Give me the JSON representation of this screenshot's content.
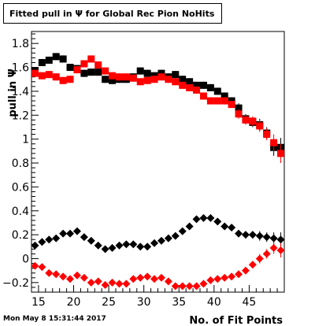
{
  "title": "Fitted pull in Ψ  for Global Rec Pion NoHits",
  "datestamp": "Mon May  8 15:31:44 2017",
  "chart_data": {
    "type": "scatter",
    "title": "Fitted pull in Ψ  for Global Rec Pion NoHits",
    "xlabel": "No. of Fit Points",
    "ylabel": "pull in Ψ",
    "xlim": [
      14,
      50
    ],
    "ylim": [
      -0.28,
      1.9
    ],
    "x_ticks": [
      15,
      20,
      25,
      30,
      35,
      40,
      45
    ],
    "y_ticks": [
      -0.2,
      0,
      0.2,
      0.4,
      0.6,
      0.8,
      1,
      1.2,
      1.4,
      1.6,
      1.8
    ],
    "x_tick_labels": [
      "15",
      "20",
      "25",
      "30",
      "35",
      "40",
      "45"
    ],
    "y_tick_labels": [
      "−0.2",
      "0",
      "0.2",
      "0.4",
      "0.6",
      "0.8",
      "1",
      "1.2",
      "1.4",
      "1.6",
      "1.8"
    ],
    "grid": false,
    "x": [
      14.5,
      15.5,
      16.5,
      17.5,
      18.5,
      19.5,
      20.5,
      21.5,
      22.5,
      23.5,
      24.5,
      25.5,
      26.5,
      27.5,
      28.5,
      29.5,
      30.5,
      31.5,
      32.5,
      33.5,
      34.5,
      35.5,
      36.5,
      37.5,
      38.5,
      39.5,
      40.5,
      41.5,
      42.5,
      43.5,
      44.5,
      45.5,
      46.5,
      47.5,
      48.5,
      49.5
    ],
    "series": [
      {
        "marker": "square",
        "color": "#000000",
        "values": [
          1.57,
          1.64,
          1.66,
          1.69,
          1.67,
          1.6,
          1.59,
          1.55,
          1.56,
          1.56,
          1.5,
          1.49,
          1.5,
          1.5,
          1.52,
          1.57,
          1.55,
          1.53,
          1.55,
          1.52,
          1.54,
          1.5,
          1.48,
          1.45,
          1.45,
          1.43,
          1.4,
          1.36,
          1.32,
          1.26,
          1.17,
          1.14,
          1.12,
          1.05,
          0.93,
          0.93
        ],
        "errors": [
          0.03,
          0.03,
          0.03,
          0.03,
          0.03,
          0.03,
          0.03,
          0.03,
          0.03,
          0.03,
          0.03,
          0.03,
          0.03,
          0.03,
          0.03,
          0.03,
          0.03,
          0.03,
          0.03,
          0.03,
          0.03,
          0.03,
          0.03,
          0.03,
          0.03,
          0.03,
          0.03,
          0.03,
          0.03,
          0.04,
          0.04,
          0.04,
          0.05,
          0.05,
          0.07,
          0.08
        ]
      },
      {
        "marker": "square",
        "color": "#ff0000",
        "values": [
          1.55,
          1.53,
          1.54,
          1.52,
          1.49,
          1.5,
          1.58,
          1.63,
          1.67,
          1.62,
          1.57,
          1.53,
          1.52,
          1.52,
          1.51,
          1.48,
          1.49,
          1.5,
          1.52,
          1.5,
          1.48,
          1.45,
          1.43,
          1.41,
          1.36,
          1.32,
          1.32,
          1.32,
          1.29,
          1.21,
          1.16,
          1.15,
          1.11,
          1.04,
          0.97,
          0.88
        ],
        "errors": [
          0.03,
          0.03,
          0.03,
          0.03,
          0.03,
          0.03,
          0.03,
          0.03,
          0.03,
          0.03,
          0.03,
          0.03,
          0.03,
          0.03,
          0.03,
          0.03,
          0.03,
          0.03,
          0.03,
          0.03,
          0.03,
          0.03,
          0.03,
          0.03,
          0.03,
          0.03,
          0.03,
          0.03,
          0.03,
          0.04,
          0.04,
          0.04,
          0.05,
          0.05,
          0.07,
          0.08
        ]
      },
      {
        "marker": "diamond",
        "color": "#000000",
        "values": [
          0.11,
          0.14,
          0.16,
          0.17,
          0.21,
          0.21,
          0.23,
          0.18,
          0.15,
          0.11,
          0.08,
          0.09,
          0.11,
          0.12,
          0.12,
          0.1,
          0.1,
          0.13,
          0.15,
          0.17,
          0.19,
          0.23,
          0.27,
          0.33,
          0.34,
          0.34,
          0.31,
          0.27,
          0.26,
          0.21,
          0.2,
          0.2,
          0.19,
          0.18,
          0.17,
          0.16
        ],
        "errors": [
          0.02,
          0.02,
          0.02,
          0.02,
          0.02,
          0.02,
          0.02,
          0.02,
          0.02,
          0.02,
          0.02,
          0.02,
          0.02,
          0.02,
          0.02,
          0.02,
          0.02,
          0.02,
          0.02,
          0.02,
          0.02,
          0.02,
          0.02,
          0.02,
          0.02,
          0.02,
          0.02,
          0.02,
          0.02,
          0.03,
          0.03,
          0.03,
          0.04,
          0.04,
          0.05,
          0.06
        ]
      },
      {
        "marker": "diamond",
        "color": "#ff0000",
        "values": [
          -0.06,
          -0.07,
          -0.12,
          -0.13,
          -0.15,
          -0.17,
          -0.14,
          -0.16,
          -0.2,
          -0.19,
          -0.22,
          -0.2,
          -0.21,
          -0.21,
          -0.17,
          -0.16,
          -0.15,
          -0.17,
          -0.16,
          -0.19,
          -0.23,
          -0.23,
          -0.23,
          -0.23,
          -0.21,
          -0.18,
          -0.17,
          -0.16,
          -0.15,
          -0.13,
          -0.1,
          -0.05,
          0.0,
          0.04,
          0.09,
          0.07
        ],
        "errors": [
          0.02,
          0.02,
          0.02,
          0.02,
          0.02,
          0.02,
          0.02,
          0.02,
          0.02,
          0.02,
          0.02,
          0.02,
          0.02,
          0.02,
          0.02,
          0.02,
          0.02,
          0.02,
          0.02,
          0.02,
          0.02,
          0.02,
          0.02,
          0.02,
          0.02,
          0.02,
          0.02,
          0.02,
          0.02,
          0.03,
          0.03,
          0.03,
          0.04,
          0.04,
          0.05,
          0.06
        ]
      }
    ]
  }
}
